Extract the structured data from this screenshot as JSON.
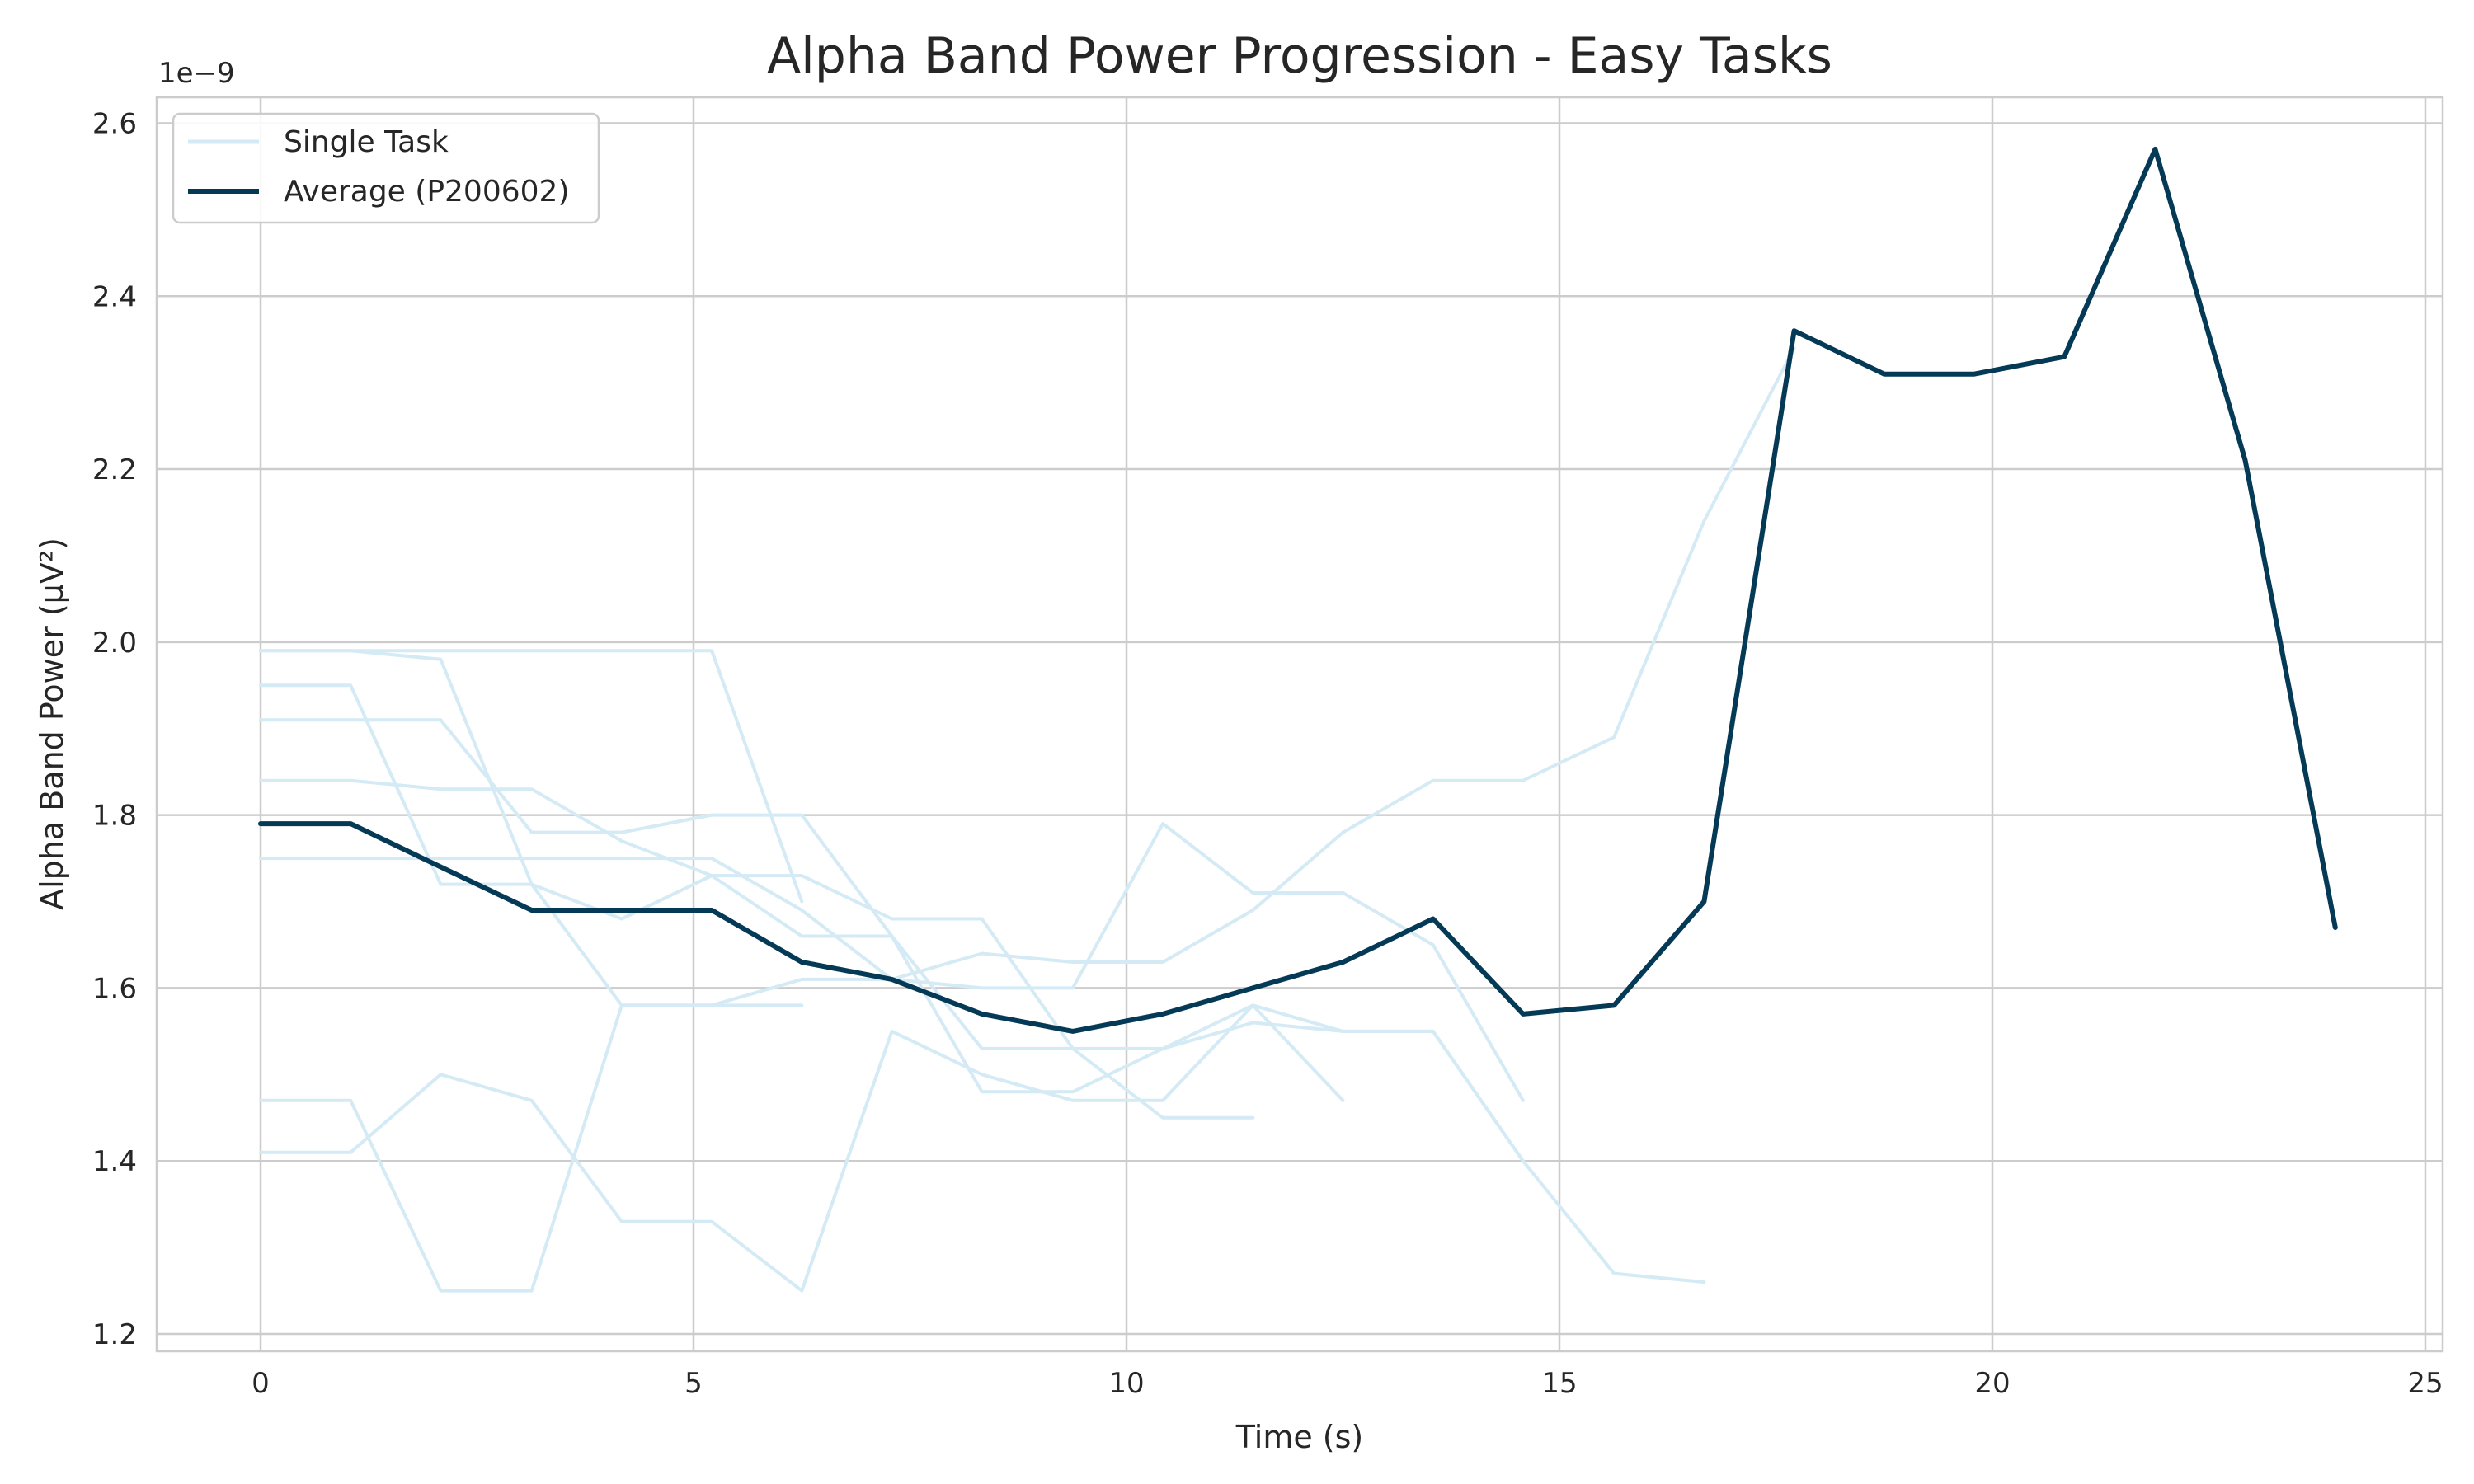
{
  "chart_data": {
    "type": "line",
    "title": "Alpha Band Power Progression - Easy Tasks",
    "xlabel": "Time (s)",
    "ylabel": "Alpha Band Power (µV²)",
    "y_offset_label": "1e−9",
    "xlim": [
      -1.2,
      25.2
    ],
    "ylim": [
      1.18,
      2.63
    ],
    "x_ticks": [
      0,
      5,
      10,
      15,
      20,
      25
    ],
    "x_tick_labels": [
      "0",
      "5",
      "10",
      "15",
      "20",
      "25"
    ],
    "y_ticks": [
      1.2,
      1.4,
      1.6,
      1.8,
      2.0,
      2.2,
      2.4,
      2.6
    ],
    "y_tick_labels": [
      "1.2",
      "1.4",
      "1.6",
      "1.8",
      "2.0",
      "2.2",
      "2.4",
      "2.6"
    ],
    "grid": true,
    "legend_position": "top-left",
    "legend": [
      {
        "label": "Single Task",
        "color": "#d4eaf5"
      },
      {
        "label": "Average (P200602)",
        "color": "#053a56"
      }
    ],
    "colors": {
      "single_task": "#d4eaf5",
      "average": "#053a56"
    },
    "series": [
      {
        "name": "Single Task",
        "role": "single",
        "x": [
          0,
          1.04,
          2.08,
          3.13,
          4.17,
          5.21,
          6.25,
          7.29,
          8.33,
          9.38,
          10.42,
          11.46
        ],
        "y": [
          1.99,
          1.99,
          1.98,
          1.72,
          1.68,
          1.73,
          1.73,
          1.68,
          1.68,
          1.53,
          1.45,
          1.45
        ]
      },
      {
        "name": "Single Task",
        "role": "single",
        "x": [
          0,
          1.04,
          2.08,
          3.13,
          4.17,
          5.21,
          6.25
        ],
        "y": [
          1.95,
          1.95,
          1.72,
          1.72,
          1.58,
          1.58,
          1.58
        ]
      },
      {
        "name": "Single Task",
        "role": "single",
        "x": [
          0,
          1.04,
          2.08,
          3.13,
          4.17,
          5.21,
          6.25,
          7.29,
          8.33,
          9.38,
          10.42,
          11.46,
          12.5,
          13.54,
          14.58
        ],
        "y": [
          1.91,
          1.91,
          1.91,
          1.78,
          1.78,
          1.8,
          1.8,
          1.66,
          1.48,
          1.48,
          1.53,
          1.56,
          1.55,
          1.55,
          1.4
        ]
      },
      {
        "name": "Single Task",
        "role": "single",
        "x": [
          0,
          1.04,
          2.08,
          3.13,
          4.17,
          5.21,
          6.25,
          7.29,
          8.33,
          9.38,
          10.42,
          11.46,
          12.5
        ],
        "y": [
          1.84,
          1.84,
          1.83,
          1.83,
          1.77,
          1.73,
          1.66,
          1.66,
          1.53,
          1.53,
          1.53,
          1.58,
          1.47
        ]
      },
      {
        "name": "Single Task",
        "role": "single",
        "x": [
          0,
          1.04,
          2.08,
          3.13,
          4.17,
          5.21,
          6.25,
          7.29,
          8.33,
          9.38,
          10.42,
          11.46,
          12.5,
          13.54,
          14.58
        ],
        "y": [
          1.75,
          1.75,
          1.75,
          1.75,
          1.75,
          1.75,
          1.69,
          1.61,
          1.6,
          1.6,
          1.79,
          1.71,
          1.71,
          1.65,
          1.47
        ]
      },
      {
        "name": "Single Task",
        "role": "single",
        "x": [
          0,
          1.04,
          2.08,
          3.13,
          4.17,
          5.21,
          6.25,
          7.29,
          8.33,
          9.38,
          10.42,
          11.46,
          12.5,
          13.54,
          14.58,
          15.63,
          16.67,
          17.71
        ],
        "y": [
          1.47,
          1.47,
          1.25,
          1.25,
          1.58,
          1.58,
          1.61,
          1.61,
          1.64,
          1.63,
          1.63,
          1.69,
          1.78,
          1.84,
          1.84,
          1.89,
          2.14,
          2.34
        ]
      },
      {
        "name": "Single Task",
        "role": "single",
        "x": [
          0,
          1.04,
          2.08,
          3.13,
          4.17,
          5.21,
          6.25,
          7.29,
          8.33,
          9.38,
          10.42,
          11.46,
          12.5,
          13.54,
          14.58,
          15.63,
          16.67
        ],
        "y": [
          1.41,
          1.41,
          1.5,
          1.47,
          1.33,
          1.33,
          1.25,
          1.55,
          1.5,
          1.47,
          1.47,
          1.58,
          1.55,
          1.55,
          1.4,
          1.27,
          1.26
        ]
      },
      {
        "name": "Single Task",
        "role": "single",
        "x": [
          0,
          1.04,
          2.08,
          3.13,
          4.17,
          5.21,
          6.25
        ],
        "y": [
          1.99,
          1.99,
          1.99,
          1.99,
          1.99,
          1.99,
          1.7
        ]
      },
      {
        "name": "Average (P200602)",
        "role": "average",
        "x": [
          0,
          1.04,
          2.08,
          3.13,
          4.17,
          5.21,
          6.25,
          7.29,
          8.33,
          9.38,
          10.42,
          11.46,
          12.5,
          13.54,
          14.58,
          15.63,
          16.67,
          17.71,
          18.75,
          19.79,
          20.83,
          21.88,
          22.92,
          23.96
        ],
        "y": [
          1.79,
          1.79,
          1.74,
          1.69,
          1.69,
          1.69,
          1.63,
          1.61,
          1.57,
          1.55,
          1.57,
          1.6,
          1.63,
          1.68,
          1.57,
          1.58,
          1.7,
          2.36,
          2.31,
          2.31,
          2.33,
          2.57,
          2.21,
          1.67
        ]
      }
    ]
  }
}
